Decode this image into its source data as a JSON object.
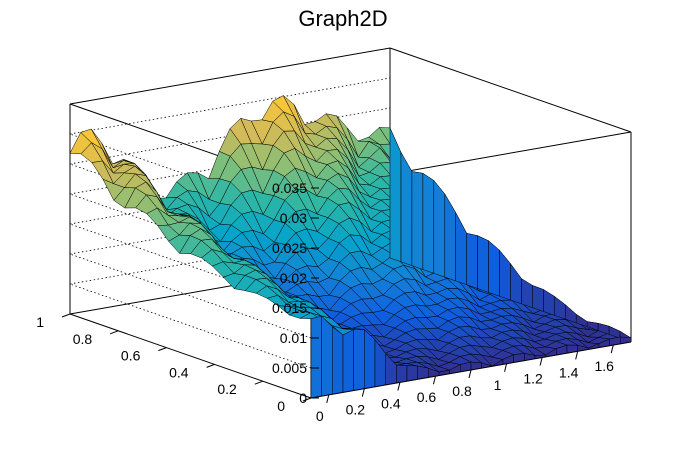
{
  "chart_data": {
    "type": "surface",
    "title": "Graph2D",
    "xlabel": "",
    "ylabel": "",
    "zlabel": "",
    "xlim": [
      -0.1,
      1.7
    ],
    "ylim": [
      0,
      1
    ],
    "zlim": [
      0,
      0.035
    ],
    "x_ticks": [
      "0",
      "0.2",
      "0.4",
      "0.6",
      "0.8",
      "1",
      "1.2",
      "1.4",
      "1.6"
    ],
    "y_ticks": [
      "0",
      "0.2",
      "0.4",
      "0.6",
      "0.8",
      "1"
    ],
    "z_ticks": [
      "0",
      "0.005",
      "0.01",
      "0.015",
      "0.02",
      "0.025",
      "0.03",
      "0.035"
    ],
    "x_tick_values": [
      0,
      0.2,
      0.4,
      0.6,
      0.8,
      1,
      1.2,
      1.4,
      1.6
    ],
    "y_tick_values": [
      0,
      0.2,
      0.4,
      0.6,
      0.8,
      1
    ],
    "z_tick_values": [
      0,
      0.005,
      0.01,
      0.015,
      0.02,
      0.025,
      0.03,
      0.035
    ],
    "grid": true,
    "colormap": [
      "#352a87",
      "#0f5cdd",
      "#1481d6",
      "#06a4ca",
      "#2eb7a4",
      "#87bf77",
      "#d1bb59",
      "#fec832",
      "#f9fb0e"
    ],
    "surface_summary": {
      "x_range": [
        -0.1,
        1.7
      ],
      "y_range": [
        0,
        1
      ],
      "z_min_near": [
        0.05,
        0.0
      ],
      "z_max_approx": 0.033,
      "z_max_near": [
        1.2,
        1.0
      ]
    }
  }
}
